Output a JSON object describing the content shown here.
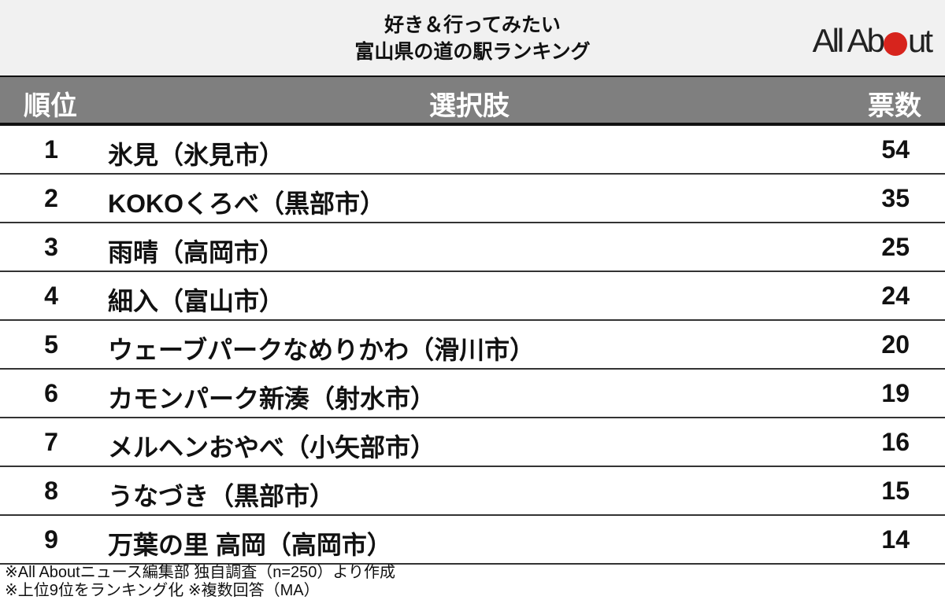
{
  "header": {
    "title_line1": "好き＆行ってみたい",
    "title_line2": "富山県の道の駅ランキング",
    "logo_text_left": "All Ab",
    "logo_text_right": "ut",
    "logo_full": "All About",
    "logo_dot_color": "#d7241d"
  },
  "chart_data": {
    "type": "table",
    "title": "好き＆行ってみたい 富山県の道の駅ランキング",
    "columns": [
      "順位",
      "選択肢",
      "票数"
    ],
    "rows": [
      {
        "rank": "1",
        "name": "氷見（氷見市）",
        "votes": "54"
      },
      {
        "rank": "2",
        "name": "KOKOくろべ（黒部市）",
        "votes": "35"
      },
      {
        "rank": "3",
        "name": "雨晴（高岡市）",
        "votes": "25"
      },
      {
        "rank": "4",
        "name": "細入（富山市）",
        "votes": "24"
      },
      {
        "rank": "5",
        "name": "ウェーブパークなめりかわ（滑川市）",
        "votes": "20"
      },
      {
        "rank": "6",
        "name": "カモンパーク新湊（射水市）",
        "votes": "19"
      },
      {
        "rank": "7",
        "name": "メルヘンおやべ（小矢部市）",
        "votes": "16"
      },
      {
        "rank": "8",
        "name": "うなづき（黒部市）",
        "votes": "15"
      },
      {
        "rank": "9",
        "name": "万葉の里 高岡（高岡市）",
        "votes": "14"
      }
    ]
  },
  "footer": {
    "note1": "※All Aboutニュース編集部 独自調査（n=250）より作成",
    "note2": "※上位9位をランキング化 ※複数回答（MA）"
  },
  "colors": {
    "header_bg": "#7f7f7f",
    "title_bg": "#f1f1f1"
  }
}
